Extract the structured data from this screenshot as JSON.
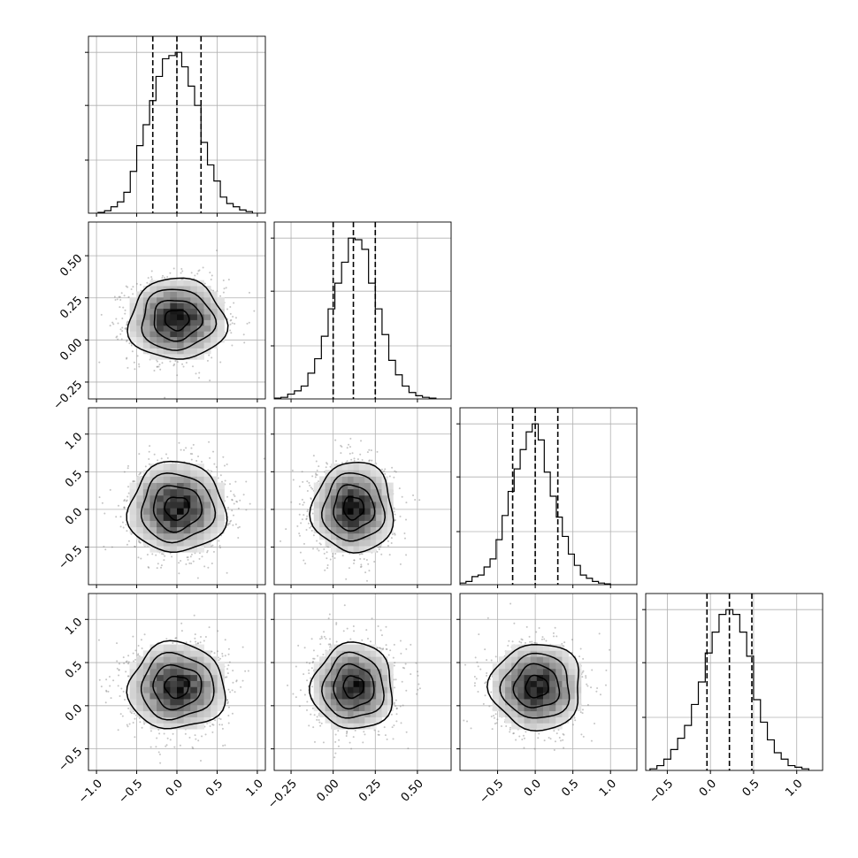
{
  "chart_data": {
    "type": "corner",
    "n_params": 4,
    "colors": {
      "line": "#000000",
      "grid": "#b0b0b0",
      "points": "#7f7f7f",
      "background": "#ffffff"
    },
    "grid": true,
    "params": [
      {
        "name": "",
        "range": [
          -1.1,
          1.1
        ],
        "ticks": [
          -1.0,
          -0.5,
          0.0,
          0.5,
          1.0
        ],
        "tick_labels": [
          "−1.0",
          "−0.5",
          "0.0",
          "0.5",
          "1.0"
        ],
        "mean": 0.0,
        "sd": 0.3,
        "quantiles": [
          -0.3,
          0.0,
          0.3
        ]
      },
      {
        "name": "",
        "range": [
          -0.35,
          0.7
        ],
        "ticks": [
          -0.25,
          0.0,
          0.25,
          0.5
        ],
        "tick_labels": [
          "−0.25",
          "0.00",
          "0.25",
          "0.50"
        ],
        "mean": 0.12,
        "sd": 0.12,
        "quantiles": [
          0.0,
          0.12,
          0.25
        ]
      },
      {
        "name": "",
        "range": [
          -1.0,
          1.35
        ],
        "ticks": [
          -0.5,
          0.0,
          0.5,
          1.0
        ],
        "tick_labels": [
          "−0.5",
          "0.0",
          "0.5",
          "1.0"
        ],
        "mean": 0.02,
        "sd": 0.3,
        "quantiles": [
          -0.3,
          0.0,
          0.3
        ]
      },
      {
        "name": "",
        "range": [
          -0.75,
          1.3
        ],
        "ticks": [
          -0.5,
          0.0,
          0.5,
          1.0
        ],
        "tick_labels": [
          "−0.5",
          "0.0",
          "0.5",
          "1.0"
        ],
        "mean": 0.22,
        "sd": 0.25,
        "quantiles": [
          -0.04,
          0.22,
          0.48
        ]
      }
    ],
    "hist_ymax": [
      1.1,
      1.1,
      1.1,
      1.1
    ],
    "hist_ticks": [
      0.33,
      0.67,
      1.0
    ],
    "histograms": [
      {
        "param": 0,
        "bin_edges": [
          -0.98,
          -0.9,
          -0.82,
          -0.74,
          -0.66,
          -0.58,
          -0.5,
          -0.42,
          -0.34,
          -0.26,
          -0.18,
          -0.1,
          -0.02,
          0.06,
          0.14,
          0.22,
          0.3,
          0.38,
          0.46,
          0.54,
          0.62,
          0.7,
          0.78,
          0.86,
          0.94
        ],
        "counts": [
          0.005,
          0.015,
          0.04,
          0.07,
          0.13,
          0.26,
          0.42,
          0.55,
          0.7,
          0.85,
          0.96,
          0.98,
          1.0,
          0.91,
          0.79,
          0.67,
          0.44,
          0.3,
          0.2,
          0.1,
          0.06,
          0.04,
          0.02,
          0.01
        ]
      },
      {
        "param": 1,
        "bin_edges": [
          -0.35,
          -0.31,
          -0.27,
          -0.23,
          -0.19,
          -0.15,
          -0.11,
          -0.07,
          -0.03,
          0.01,
          0.05,
          0.09,
          0.13,
          0.17,
          0.21,
          0.25,
          0.29,
          0.33,
          0.37,
          0.41,
          0.45,
          0.49,
          0.53,
          0.57,
          0.61
        ],
        "counts": [
          0.005,
          0.01,
          0.03,
          0.05,
          0.08,
          0.16,
          0.25,
          0.39,
          0.56,
          0.72,
          0.85,
          1.0,
          0.99,
          0.93,
          0.72,
          0.56,
          0.4,
          0.24,
          0.15,
          0.08,
          0.04,
          0.02,
          0.01,
          0.005
        ]
      },
      {
        "param": 2,
        "bin_edges": [
          -1.0,
          -0.92,
          -0.84,
          -0.76,
          -0.68,
          -0.6,
          -0.52,
          -0.44,
          -0.36,
          -0.28,
          -0.2,
          -0.12,
          -0.04,
          0.04,
          0.12,
          0.2,
          0.28,
          0.36,
          0.44,
          0.52,
          0.6,
          0.68,
          0.76,
          0.84,
          0.92,
          1.0
        ],
        "counts": [
          0.01,
          0.02,
          0.05,
          0.06,
          0.11,
          0.16,
          0.28,
          0.43,
          0.58,
          0.72,
          0.84,
          0.95,
          1.0,
          0.9,
          0.7,
          0.55,
          0.42,
          0.3,
          0.19,
          0.12,
          0.06,
          0.04,
          0.02,
          0.01,
          0.005
        ]
      },
      {
        "param": 3,
        "bin_edges": [
          -0.7,
          -0.62,
          -0.54,
          -0.46,
          -0.38,
          -0.3,
          -0.22,
          -0.14,
          -0.06,
          0.02,
          0.1,
          0.18,
          0.26,
          0.34,
          0.42,
          0.5,
          0.58,
          0.66,
          0.74,
          0.82,
          0.9,
          0.98,
          1.06,
          1.14
        ],
        "counts": [
          0.01,
          0.03,
          0.07,
          0.13,
          0.2,
          0.28,
          0.41,
          0.55,
          0.73,
          0.86,
          0.97,
          1.0,
          0.97,
          0.86,
          0.71,
          0.44,
          0.3,
          0.19,
          0.11,
          0.07,
          0.03,
          0.02,
          0.01
        ]
      }
    ],
    "contour_levels": [
      0.5,
      1.0,
      1.5,
      2.0
    ],
    "panels_2d": [
      {
        "x": 0,
        "y": 1
      },
      {
        "x": 0,
        "y": 2
      },
      {
        "x": 1,
        "y": 2
      },
      {
        "x": 0,
        "y": 3
      },
      {
        "x": 1,
        "y": 3
      },
      {
        "x": 2,
        "y": 3
      }
    ]
  }
}
